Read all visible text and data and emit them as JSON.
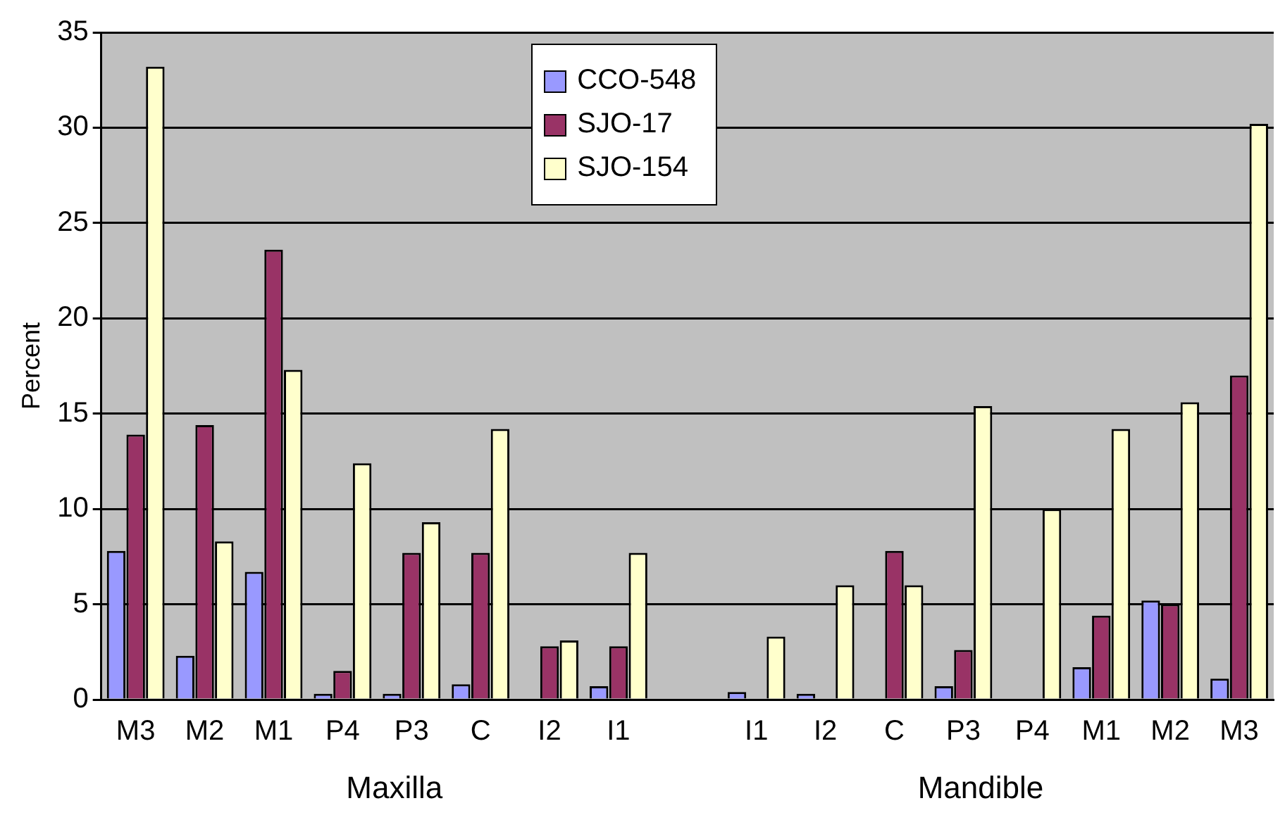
{
  "chart_data": {
    "type": "bar",
    "ylabel": "Percent",
    "categories": [
      "M3",
      "M2",
      "M1",
      "P4",
      "P3",
      "C",
      "I2",
      "I1",
      null,
      "I1",
      "I2",
      "C",
      "P3",
      "P4",
      "M1",
      "M2",
      "M3"
    ],
    "series": [
      {
        "name": "CCO-548",
        "color": "#9999ff",
        "values": [
          7.8,
          2.3,
          6.7,
          0.3,
          0.3,
          0.8,
          0,
          0.7,
          null,
          0.4,
          0.3,
          0,
          0.7,
          0,
          1.7,
          5.2,
          1.1
        ]
      },
      {
        "name": "SJO-17",
        "color": "#993366",
        "values": [
          13.9,
          14.4,
          23.6,
          1.5,
          7.7,
          7.7,
          2.8,
          2.8,
          null,
          0,
          0,
          7.8,
          2.6,
          0,
          4.4,
          5.0,
          17.0
        ]
      },
      {
        "name": "SJO-154",
        "color": "#ffffcc",
        "values": [
          33.2,
          8.3,
          17.3,
          12.4,
          9.3,
          14.2,
          3.1,
          7.7,
          null,
          3.3,
          6.0,
          6.0,
          15.4,
          10.0,
          14.2,
          15.6,
          30.2
        ]
      }
    ],
    "annotations": [
      "Maxilla",
      "Mandible"
    ],
    "ylim": [
      0,
      35
    ],
    "yticks": [
      0,
      5,
      10,
      15,
      20,
      25,
      30,
      35
    ],
    "grid": "y",
    "legend": "top"
  }
}
